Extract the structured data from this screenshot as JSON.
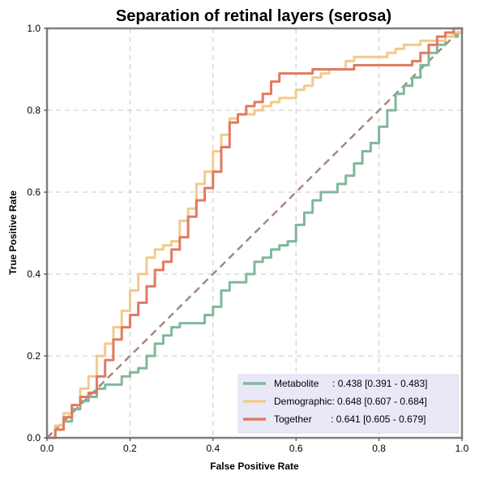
{
  "chart_data": {
    "type": "line",
    "title": "Separation of retinal layers (serosa)",
    "xlabel": "False Positive Rate",
    "ylabel": "True Positive Rate",
    "xlim": [
      0,
      1
    ],
    "ylim": [
      0,
      1
    ],
    "xticks": [
      "0.0",
      "0.2",
      "0.4",
      "0.6",
      "0.8",
      "1.0"
    ],
    "yticks": [
      "0.0",
      "0.2",
      "0.4",
      "0.6",
      "0.8",
      "1.0"
    ],
    "grid": true,
    "legend_position": "lower-right",
    "chance_line": {
      "x": [
        0,
        1
      ],
      "y": [
        0,
        1
      ],
      "color": "#a9877a",
      "style": "dashed"
    },
    "series": [
      {
        "name": "Metabolite",
        "label_text": "Metabolite     : 0.438 [0.391 - 0.483]",
        "color": "#7fb89a",
        "x": [
          0,
          0.02,
          0.04,
          0.06,
          0.08,
          0.1,
          0.12,
          0.14,
          0.16,
          0.18,
          0.2,
          0.22,
          0.24,
          0.26,
          0.28,
          0.3,
          0.32,
          0.34,
          0.36,
          0.38,
          0.4,
          0.42,
          0.44,
          0.46,
          0.48,
          0.5,
          0.52,
          0.54,
          0.56,
          0.58,
          0.6,
          0.62,
          0.64,
          0.66,
          0.68,
          0.7,
          0.72,
          0.74,
          0.76,
          0.78,
          0.8,
          0.82,
          0.84,
          0.86,
          0.88,
          0.9,
          0.92,
          0.94,
          0.96,
          0.98,
          0.99,
          1.0
        ],
        "y": [
          0,
          0.02,
          0.04,
          0.07,
          0.09,
          0.1,
          0.12,
          0.13,
          0.13,
          0.15,
          0.16,
          0.17,
          0.2,
          0.23,
          0.25,
          0.27,
          0.28,
          0.28,
          0.28,
          0.3,
          0.32,
          0.36,
          0.38,
          0.38,
          0.4,
          0.43,
          0.44,
          0.46,
          0.47,
          0.48,
          0.52,
          0.55,
          0.58,
          0.6,
          0.6,
          0.62,
          0.64,
          0.67,
          0.7,
          0.72,
          0.76,
          0.8,
          0.84,
          0.86,
          0.88,
          0.91,
          0.94,
          0.96,
          0.98,
          0.98,
          0.99,
          1.0
        ]
      },
      {
        "name": "Demographic",
        "label_text": "Demographic: 0.648 [0.607 - 0.684]",
        "color": "#f2ca8c",
        "x": [
          0,
          0.02,
          0.04,
          0.06,
          0.08,
          0.1,
          0.12,
          0.14,
          0.16,
          0.18,
          0.2,
          0.22,
          0.24,
          0.26,
          0.28,
          0.3,
          0.32,
          0.34,
          0.36,
          0.38,
          0.4,
          0.42,
          0.44,
          0.46,
          0.48,
          0.5,
          0.52,
          0.54,
          0.56,
          0.58,
          0.6,
          0.62,
          0.64,
          0.66,
          0.68,
          0.7,
          0.72,
          0.74,
          0.76,
          0.78,
          0.8,
          0.82,
          0.84,
          0.86,
          0.88,
          0.9,
          0.92,
          0.94,
          0.96,
          0.98,
          1.0
        ],
        "y": [
          0,
          0.03,
          0.06,
          0.08,
          0.12,
          0.15,
          0.2,
          0.23,
          0.27,
          0.31,
          0.36,
          0.4,
          0.44,
          0.46,
          0.47,
          0.48,
          0.53,
          0.56,
          0.62,
          0.65,
          0.7,
          0.74,
          0.78,
          0.79,
          0.79,
          0.8,
          0.81,
          0.82,
          0.83,
          0.83,
          0.85,
          0.86,
          0.88,
          0.89,
          0.9,
          0.9,
          0.92,
          0.93,
          0.93,
          0.93,
          0.93,
          0.94,
          0.95,
          0.96,
          0.96,
          0.97,
          0.97,
          0.97,
          0.98,
          0.99,
          1.0
        ]
      },
      {
        "name": "Together",
        "label_text": "Together       : 0.641 [0.605 - 0.679]",
        "color": "#e07a60",
        "x": [
          0,
          0.02,
          0.04,
          0.06,
          0.08,
          0.1,
          0.12,
          0.14,
          0.16,
          0.18,
          0.2,
          0.22,
          0.24,
          0.26,
          0.28,
          0.3,
          0.32,
          0.34,
          0.36,
          0.38,
          0.4,
          0.42,
          0.44,
          0.46,
          0.48,
          0.5,
          0.52,
          0.54,
          0.56,
          0.58,
          0.6,
          0.62,
          0.64,
          0.66,
          0.68,
          0.7,
          0.72,
          0.74,
          0.76,
          0.78,
          0.8,
          0.82,
          0.84,
          0.86,
          0.88,
          0.9,
          0.92,
          0.94,
          0.96,
          0.98,
          1.0
        ],
        "y": [
          0,
          0.02,
          0.05,
          0.08,
          0.1,
          0.11,
          0.15,
          0.19,
          0.24,
          0.27,
          0.3,
          0.33,
          0.37,
          0.41,
          0.43,
          0.46,
          0.49,
          0.54,
          0.58,
          0.61,
          0.65,
          0.71,
          0.77,
          0.79,
          0.81,
          0.82,
          0.84,
          0.87,
          0.89,
          0.89,
          0.89,
          0.89,
          0.9,
          0.9,
          0.9,
          0.9,
          0.9,
          0.91,
          0.91,
          0.91,
          0.91,
          0.91,
          0.91,
          0.91,
          0.92,
          0.94,
          0.96,
          0.98,
          0.99,
          1.0,
          1.0
        ]
      }
    ]
  }
}
